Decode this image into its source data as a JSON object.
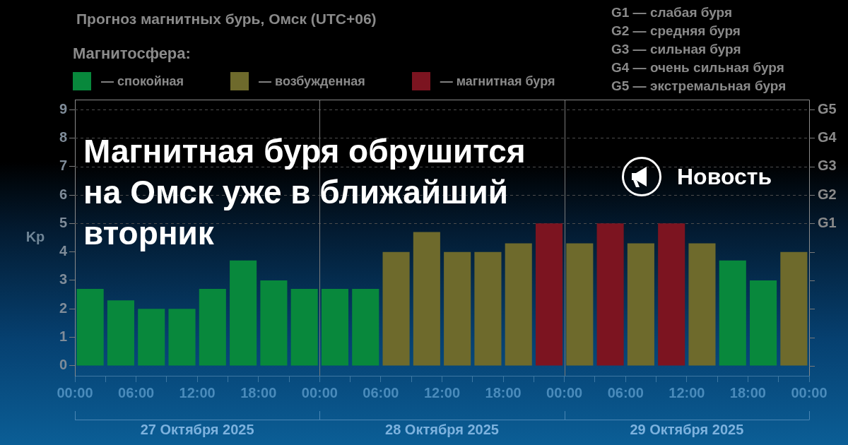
{
  "chart_data": {
    "type": "bar",
    "title": "Прогноз магнитных бурь, Омск (UTC+06)",
    "ylabel": "Kp",
    "legend_title": "Магнитосфера:",
    "legend": "top left",
    "x": [
      "2025-10-27T01:30",
      "2025-10-27T04:30",
      "2025-10-27T07:30",
      "2025-10-27T10:30",
      "2025-10-27T13:30",
      "2025-10-27T16:30",
      "2025-10-27T19:30",
      "2025-10-27T22:30",
      "2025-10-28T01:30",
      "2025-10-28T04:30",
      "2025-10-28T07:30",
      "2025-10-28T10:30",
      "2025-10-28T13:30",
      "2025-10-28T16:30",
      "2025-10-28T19:30",
      "2025-10-28T22:30",
      "2025-10-29T01:30",
      "2025-10-29T04:30",
      "2025-10-29T07:30",
      "2025-10-29T10:30",
      "2025-10-29T13:30",
      "2025-10-29T16:30",
      "2025-10-29T19:30",
      "2025-10-29T22:30"
    ],
    "series": [
      {
        "name": "— спокойная",
        "color": "#08883c",
        "values": [
          2.7,
          2.3,
          2,
          2,
          2.7,
          3.7,
          3,
          2.7,
          2.7,
          2.7,
          null,
          null,
          null,
          null,
          null,
          null,
          null,
          null,
          null,
          null,
          null,
          3.7,
          3,
          null
        ]
      },
      {
        "name": "— возбужденная",
        "color": "#6e6a2c",
        "values": [
          null,
          null,
          null,
          null,
          null,
          null,
          null,
          null,
          null,
          null,
          4,
          4.7,
          4,
          4,
          4.3,
          null,
          4.3,
          null,
          4.3,
          null,
          4.3,
          null,
          null,
          4
        ]
      },
      {
        "name": "— магнитная буря",
        "color": "#7c1420",
        "values": [
          null,
          null,
          null,
          null,
          null,
          null,
          null,
          null,
          null,
          null,
          null,
          null,
          null,
          null,
          null,
          5,
          null,
          5,
          null,
          5,
          null,
          null,
          null,
          null
        ]
      }
    ],
    "xlim": [
      "2025-10-27T00:00",
      "2025-10-30T00:00"
    ],
    "xticks": [
      {
        "value": "2025-10-27T00:00",
        "label": "00:00"
      },
      {
        "value": "2025-10-27T03:00",
        "label": null
      },
      {
        "value": "2025-10-27T06:00",
        "label": "06:00"
      },
      {
        "value": "2025-10-27T09:00",
        "label": null
      },
      {
        "value": "2025-10-27T12:00",
        "label": "12:00"
      },
      {
        "value": "2025-10-27T15:00",
        "label": null
      },
      {
        "value": "2025-10-27T18:00",
        "label": "18:00"
      },
      {
        "value": "2025-10-27T21:00",
        "label": null
      },
      {
        "value": "2025-10-28T00:00",
        "label": "00:00"
      },
      {
        "value": "2025-10-28T03:00",
        "label": null
      },
      {
        "value": "2025-10-28T06:00",
        "label": "06:00"
      },
      {
        "value": "2025-10-28T09:00",
        "label": null
      },
      {
        "value": "2025-10-28T12:00",
        "label": "12:00"
      },
      {
        "value": "2025-10-28T15:00",
        "label": null
      },
      {
        "value": "2025-10-28T18:00",
        "label": "18:00"
      },
      {
        "value": "2025-10-28T21:00",
        "label": null
      },
      {
        "value": "2025-10-29T00:00",
        "label": "00:00"
      },
      {
        "value": "2025-10-29T03:00",
        "label": null
      },
      {
        "value": "2025-10-29T06:00",
        "label": "06:00"
      },
      {
        "value": "2025-10-29T09:00",
        "label": null
      },
      {
        "value": "2025-10-29T12:00",
        "label": "12:00"
      },
      {
        "value": "2025-10-29T15:00",
        "label": null
      },
      {
        "value": "2025-10-29T18:00",
        "label": "18:00"
      },
      {
        "value": "2025-10-29T21:00",
        "label": null
      },
      {
        "value": "2025-10-30T00:00",
        "label": "00:00"
      }
    ],
    "ylim": [
      -0.35,
      9.35
    ],
    "yticks": [
      0,
      1,
      2,
      3,
      4,
      5,
      6,
      7,
      8,
      9
    ],
    "ref_lines": [
      {
        "axis": "y",
        "value": 5,
        "label": "G1",
        "color": "#4d4d4d",
        "line_style": "dashed"
      },
      {
        "axis": "y",
        "value": 6,
        "label": "G2",
        "color": "#4d4d4d",
        "line_style": "dashed"
      },
      {
        "axis": "y",
        "value": 7,
        "label": "G3",
        "color": "#4d4d4d",
        "line_style": "dashed"
      },
      {
        "axis": "y",
        "value": 8,
        "label": "G4",
        "color": "#4d4d4d",
        "line_style": "dashed"
      },
      {
        "axis": "y",
        "value": 9,
        "label": "G5",
        "color": "#4d4d4d",
        "line_style": "dashed"
      },
      {
        "axis": "x",
        "value": "2025-10-28T00:00",
        "color": "#7a7a7a",
        "line_style": "solid"
      },
      {
        "axis": "x",
        "value": "2025-10-29T00:00",
        "color": "#7a7a7a",
        "line_style": "solid"
      }
    ],
    "annotations": [
      "G1 — слабая буря",
      "G2 — средняя буря",
      "G3 — сильная буря",
      "G4 — очень сильная буря",
      "G5 — экстремальная буря",
      "27 Октября 2025",
      "28 Октября 2025",
      "29 Октября 2025",
      "Магнитная буря обрушится на Омск уже в ближайший вторник",
      "Новость"
    ]
  }
}
